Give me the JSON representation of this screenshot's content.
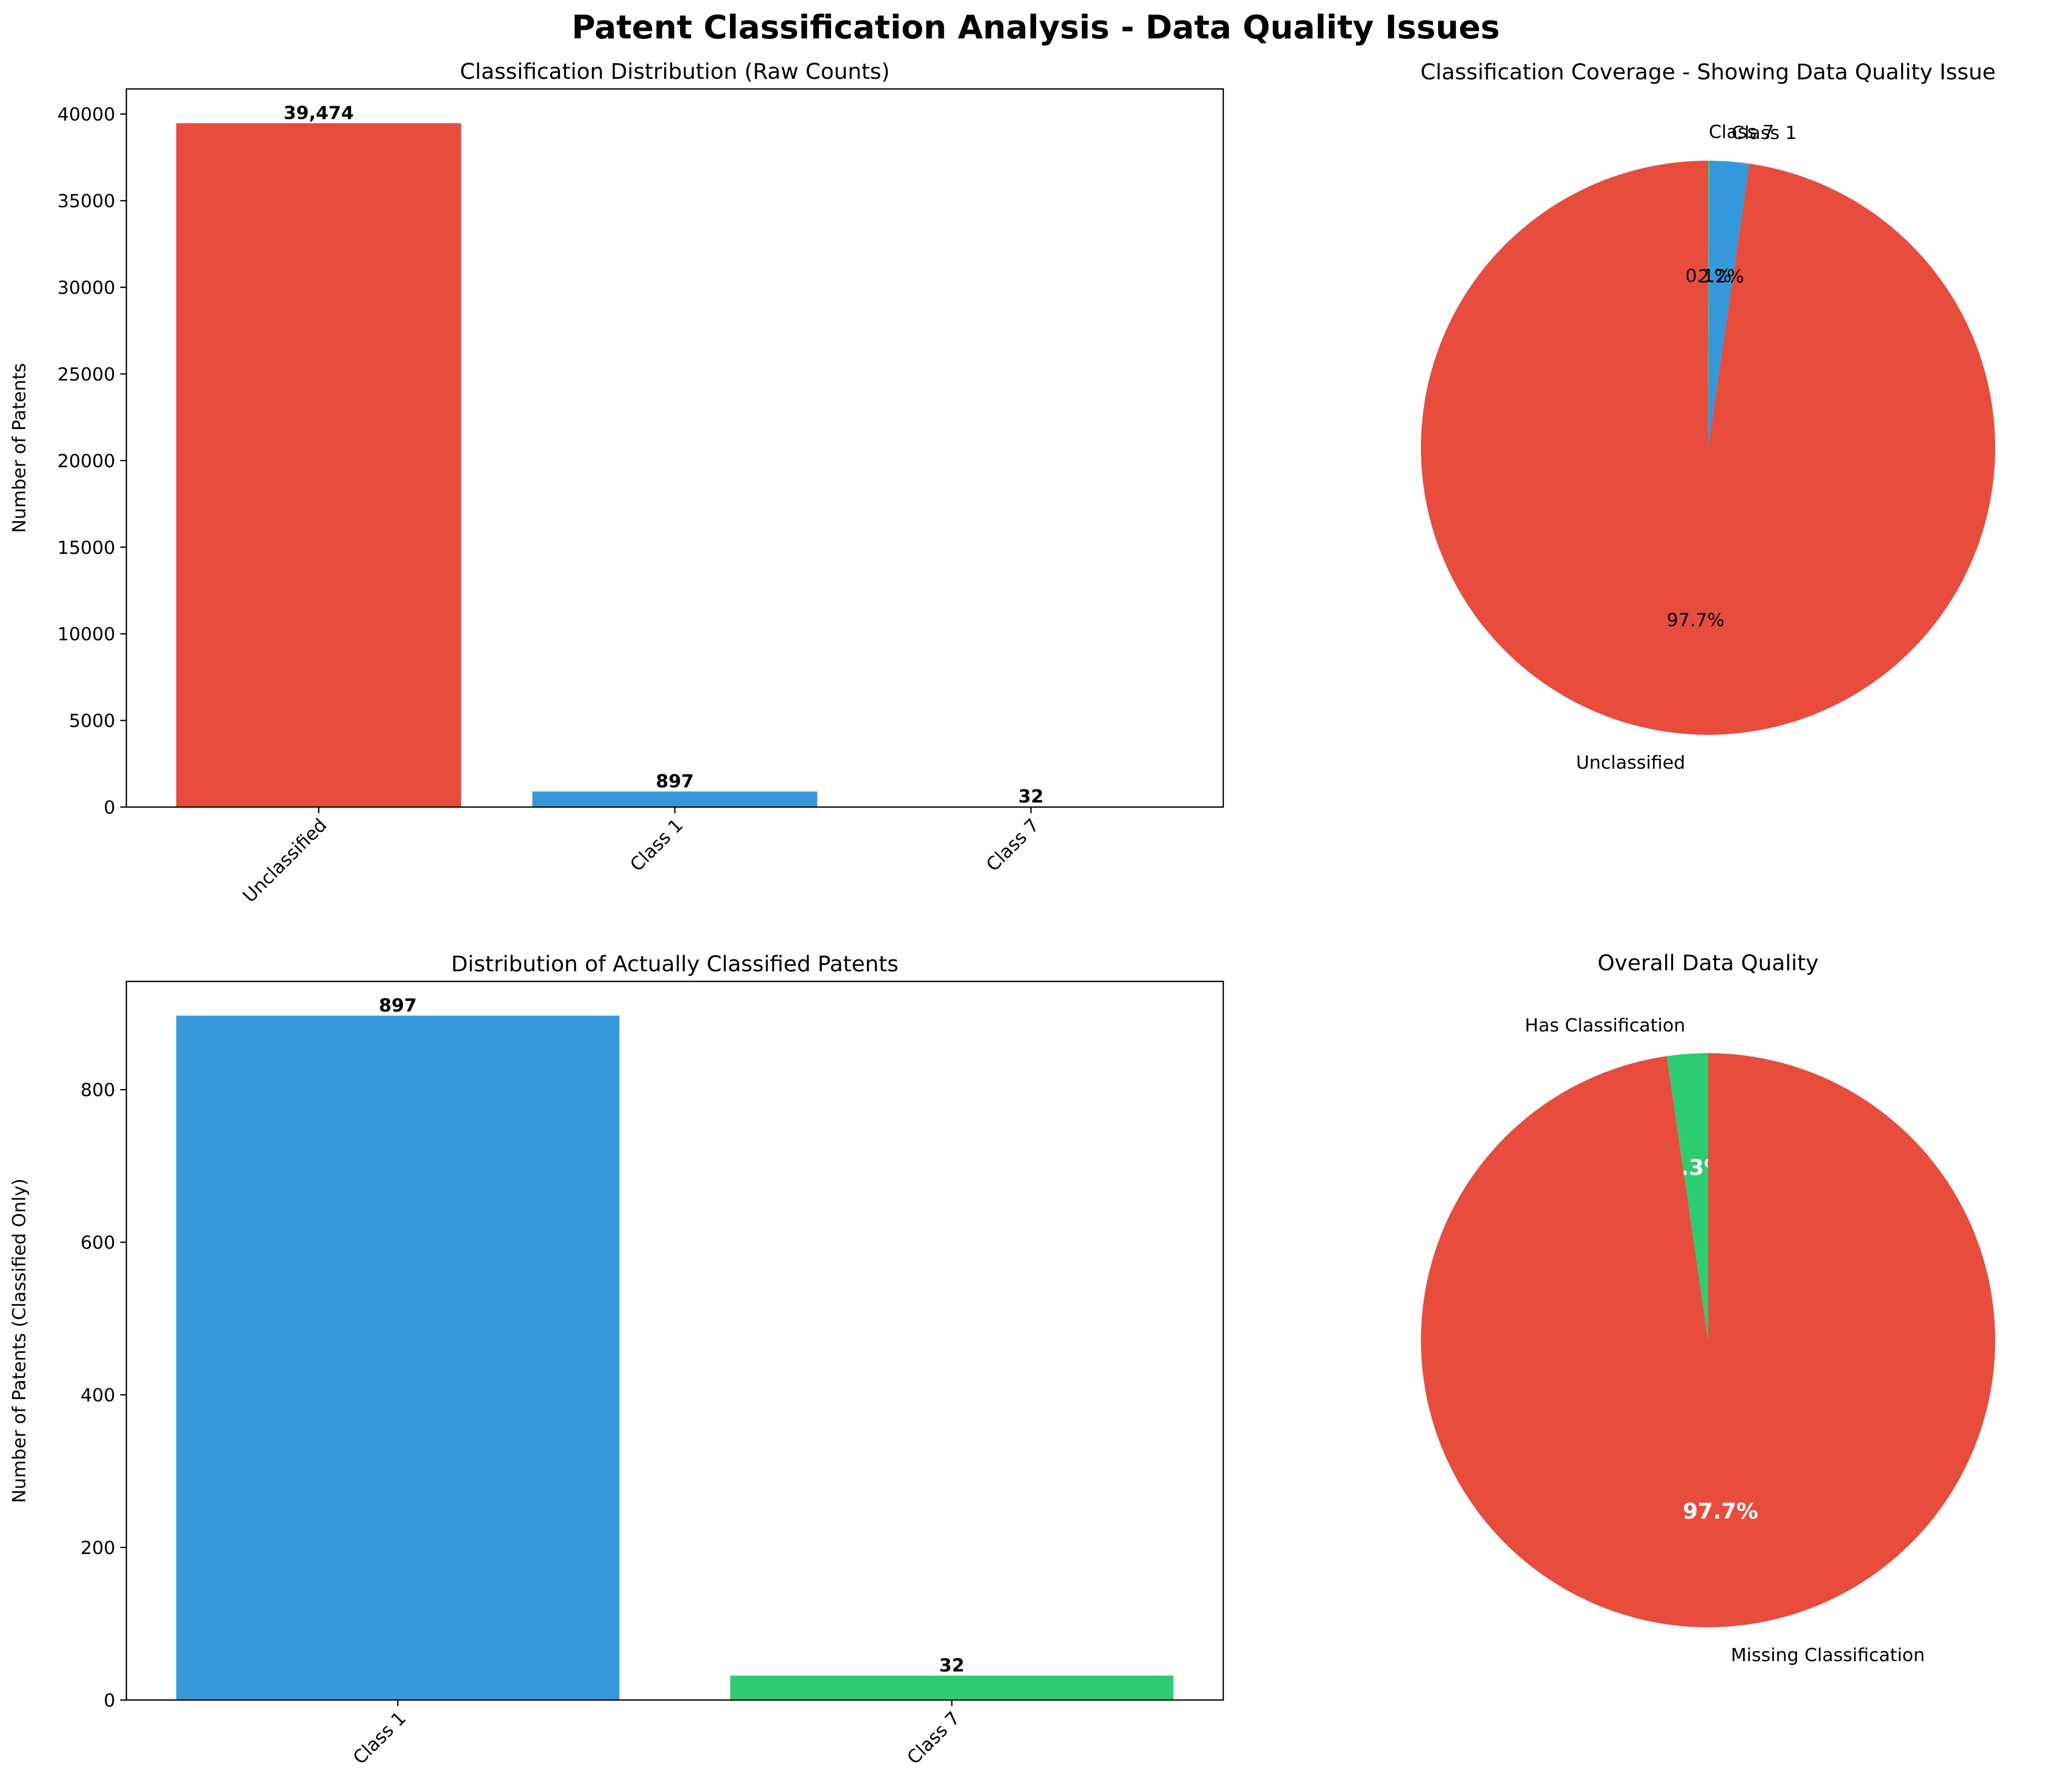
{
  "title": "Patent Classification Analysis - Data Quality Issues",
  "chart_data": [
    {
      "id": "raw",
      "type": "bar",
      "title": "Classification Distribution (Raw Counts)",
      "ylabel": "Number of Patents",
      "xlabel": "",
      "categories": [
        "Unclassified",
        "Class 1",
        "Class 7"
      ],
      "values": [
        39474,
        897,
        32
      ],
      "value_labels": [
        "39,474",
        "897",
        "32"
      ],
      "colors": [
        "#e74c3c",
        "#3498db",
        "#2ecc71"
      ],
      "ylim": [
        0,
        41450
      ],
      "yticks": [
        0,
        5000,
        10000,
        15000,
        20000,
        25000,
        30000,
        35000,
        40000
      ],
      "ytick_labels": [
        "0",
        "5000",
        "10000",
        "15000",
        "20000",
        "25000",
        "30000",
        "35000",
        "40000"
      ]
    },
    {
      "id": "coverage",
      "type": "pie",
      "title": "Classification Coverage - Showing Data Quality Issue",
      "labels": [
        "Unclassified",
        "Class 1",
        "Class 7"
      ],
      "values": [
        39474,
        897,
        32
      ],
      "percent_labels": [
        "97.7%",
        "2.2%",
        "0.1%"
      ],
      "colors": [
        "#e74c3c",
        "#3498db",
        "#2ecc71"
      ]
    },
    {
      "id": "classified",
      "type": "bar",
      "title": "Distribution of Actually Classified Patents",
      "ylabel": "Number of Patents (Classified Only)",
      "xlabel": "",
      "categories": [
        "Class 1",
        "Class 7"
      ],
      "values": [
        897,
        32
      ],
      "value_labels": [
        "897",
        "32"
      ],
      "colors": [
        "#3498db",
        "#2ecc71"
      ],
      "ylim": [
        0,
        941.85
      ],
      "yticks": [
        0,
        200,
        400,
        600,
        800
      ],
      "ytick_labels": [
        "0",
        "200",
        "400",
        "600",
        "800"
      ]
    },
    {
      "id": "quality",
      "type": "pie",
      "title": "Overall Data Quality",
      "labels": [
        "Missing Classification",
        "Has Classification"
      ],
      "values": [
        39474,
        929
      ],
      "percent_labels": [
        "97.7%",
        "2.3%"
      ],
      "colors": [
        "#e74c3c",
        "#2ecc71"
      ]
    }
  ]
}
